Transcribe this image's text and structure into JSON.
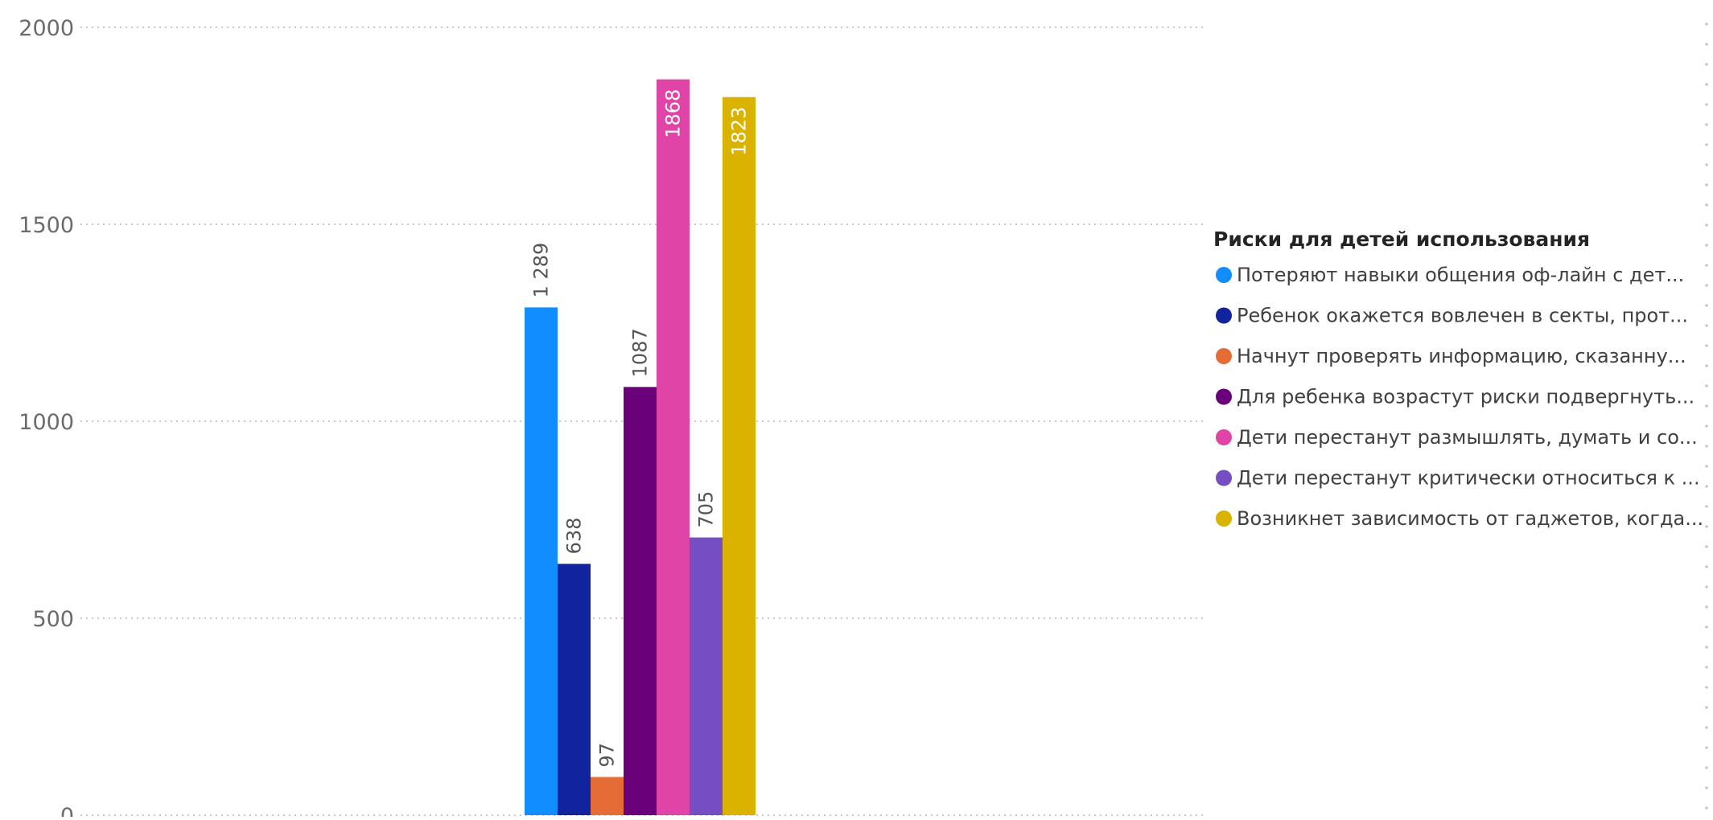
{
  "chart_data": {
    "type": "bar",
    "ylim": [
      0,
      2000
    ],
    "y_ticks": [
      "0",
      "500",
      "1000",
      "1500",
      "2000"
    ],
    "grid": "horizontal dotted",
    "legend_placement": "right",
    "legend_title": "Риски для детей использования",
    "series": [
      {
        "name": "Потеряют навыки общения оф-лайн с дет...",
        "value": 1289,
        "label": "1 289",
        "color": "#118DFF",
        "label_color": "#555555",
        "label_inside": false
      },
      {
        "name": "Ребенок окажется вовлечен в секты, прот...",
        "value": 638,
        "label": "638",
        "color": "#12239E",
        "label_color": "#555555",
        "label_inside": false
      },
      {
        "name": "Начнут проверять информацию, сказанну...",
        "value": 97,
        "label": "97",
        "color": "#E66C37",
        "label_color": "#555555",
        "label_inside": false
      },
      {
        "name": "Для ребенка возрастут риски подвергнуть...",
        "value": 1087,
        "label": "1087",
        "color": "#6B007B",
        "label_color": "#555555",
        "label_inside": false
      },
      {
        "name": "Дети перестанут размышлять, думать и со...",
        "value": 1868,
        "label": "1868",
        "color": "#E044A7",
        "label_color": "#ffffff",
        "label_inside": true
      },
      {
        "name": "Дети перестанут критически относиться к ...",
        "value": 705,
        "label": "705",
        "color": "#744EC2",
        "label_color": "#555555",
        "label_inside": false
      },
      {
        "name": "Возникнет зависимость от гаджетов, когда...",
        "value": 1823,
        "label": "1823",
        "color": "#D9B300",
        "label_color": "#ffffff",
        "label_inside": true
      }
    ]
  }
}
